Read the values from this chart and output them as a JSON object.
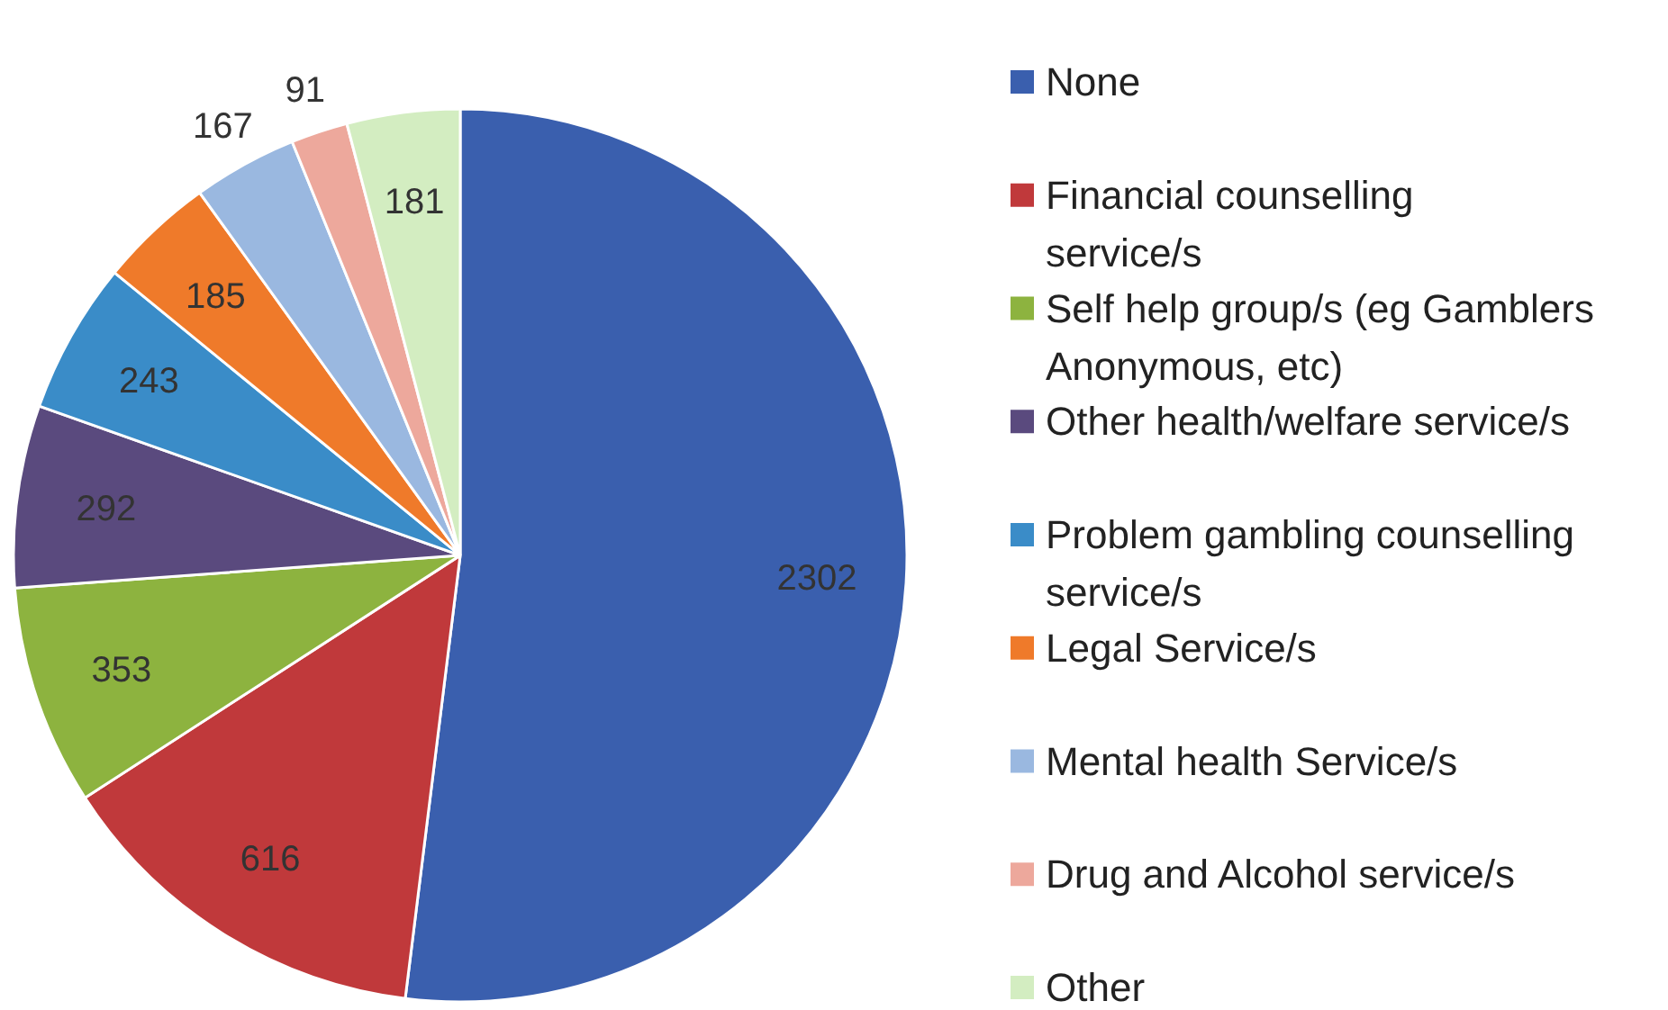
{
  "chart_data": {
    "type": "pie",
    "categories": [
      "None",
      "Financial counselling service/s",
      "Self help group/s (eg Gamblers Anonymous, etc)",
      "Other health/welfare service/s",
      "Problem gambling counselling service/s",
      "Legal Service/s",
      "Mental health Service/s",
      "Drug and Alcohol service/s",
      "Other"
    ],
    "values": [
      2302,
      616,
      353,
      292,
      243,
      185,
      167,
      91,
      181
    ],
    "colors": [
      "#3a5fae",
      "#c0393b",
      "#8db33f",
      "#5a4a7e",
      "#3a8cc8",
      "#ef7a2a",
      "#9ab8e0",
      "#eda89c",
      "#d3edc1"
    ],
    "data_labels": true,
    "legend": "right"
  }
}
